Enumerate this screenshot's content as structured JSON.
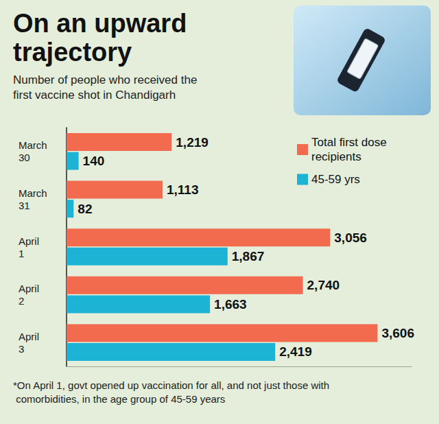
{
  "chart_data": {
    "type": "bar",
    "orientation": "horizontal",
    "title": "On an upward trajectory",
    "subtitle": "Number of people who received the first vaccine shot in Chandigarh",
    "categories": [
      "March 30",
      "March 31",
      "April 1",
      "April 2",
      "April 3"
    ],
    "series": [
      {
        "name": "Total first dose recipients",
        "color": "#f26b4f",
        "values": [
          1219,
          1113,
          3056,
          2740,
          3606
        ],
        "value_labels": [
          "1,219",
          "1,113",
          "3,056",
          "2,740",
          "3,606"
        ]
      },
      {
        "name": "45-59 yrs",
        "color": "#1db3d4",
        "values": [
          140,
          82,
          1867,
          1663,
          2419
        ],
        "value_labels": [
          "140",
          "82",
          "1,867",
          "1,663",
          "2,419"
        ]
      }
    ],
    "xlim": [
      0,
      4000
    ],
    "data_labels": true,
    "tick_labels": "y",
    "legend": "top-right",
    "grid": false,
    "annotations": [
      "*On April 1, govt opened up vaccination for all, and not just those with comorbidities, in the age group of 45-59 years"
    ]
  }
}
